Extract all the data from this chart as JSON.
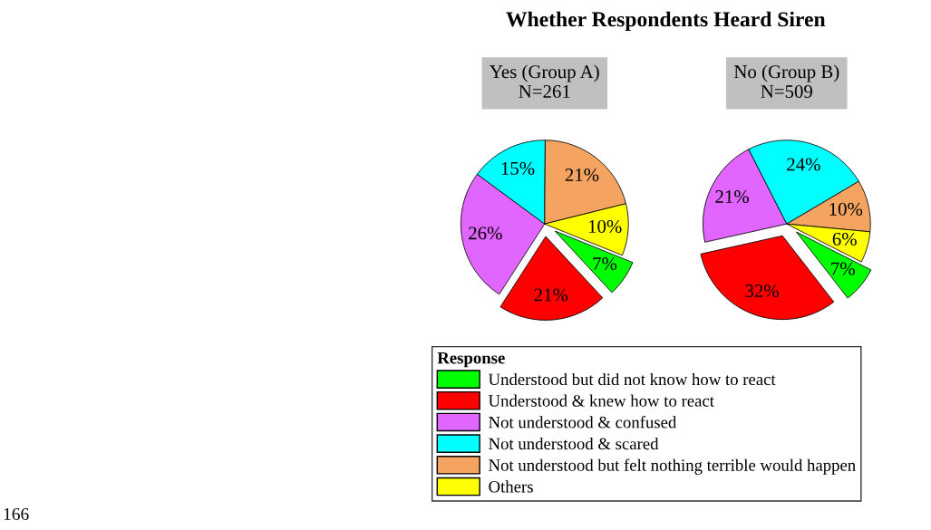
{
  "chart_data": [
    {
      "type": "pie",
      "title": "Whether Respondents Heard Siren",
      "subtitle": "Yes (Group A)\nN=261",
      "legend_title": "Response",
      "legend": "bottom",
      "categories": [
        "Understood but did not know how to react",
        "Understood & knew how to react",
        "Not understood & confused",
        "Not understood & scared",
        "Not understood but felt nothing terrible would happen",
        "Others"
      ],
      "values": [
        7,
        21,
        26,
        15,
        21,
        10
      ],
      "value_labels": [
        "7%",
        "21%",
        "26%",
        "15%",
        "21%",
        "10%"
      ],
      "colors": [
        "#00ff00",
        "#ff0000",
        "#e066ff",
        "#00ffff",
        "#f4a460",
        "#ffff00"
      ],
      "annotations": [
        "166"
      ]
    },
    {
      "type": "pie",
      "subtitle": "No (Group B)\nN=509",
      "categories": [
        null,
        null,
        null,
        null,
        null,
        null
      ],
      "values": [
        7,
        32,
        21,
        24,
        10,
        6
      ],
      "value_labels": [
        "7%",
        "32%",
        "21%",
        "24%",
        "10%",
        "6%"
      ],
      "colors": [
        "#00ff00",
        "#ff0000",
        "#e066ff",
        "#00ffff",
        "#f4a460",
        "#ffff00"
      ]
    }
  ]
}
